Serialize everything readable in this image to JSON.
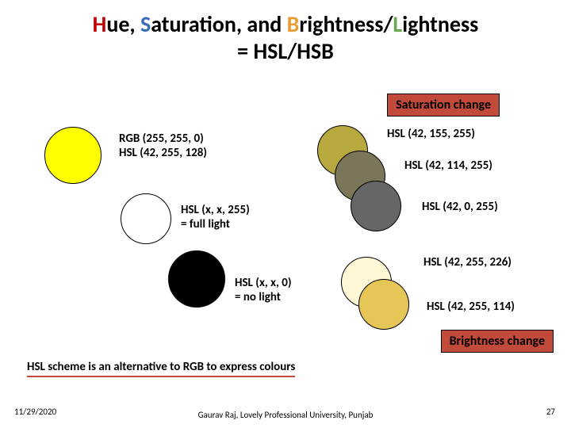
{
  "title": {
    "H": "H",
    "ue": "ue, ",
    "S": "S",
    "aturation": "aturation, and ",
    "B": "B",
    "rightness": "rightness/",
    "L": "L",
    "ightness": "ightness",
    "line2": "= HSL/HSB",
    "H_color": "#c00000",
    "S_color": "#3b6db5",
    "B_color": "#e69c2e",
    "L_color": "#6aa84f"
  },
  "banners": {
    "saturation": "Saturation change",
    "brightness": "Brightness change",
    "bg": "#c24a3a"
  },
  "circles": {
    "yellow": {
      "fill": "#ffff00",
      "size": 72
    },
    "white": {
      "fill": "#ffffff",
      "size": 64
    },
    "black": {
      "fill": "#000000",
      "size": 72
    },
    "sat1": {
      "fill": "#b8a93e",
      "size": 64
    },
    "sat2": {
      "fill": "#7b7559",
      "size": 64
    },
    "sat3": {
      "fill": "#666666",
      "size": 64
    },
    "bri1": {
      "fill": "#fff7d6",
      "size": 64
    },
    "bri2": {
      "fill": "#e6c657",
      "size": 64
    }
  },
  "labels": {
    "rgb_yellow_l1": "RGB  (255, 255, 0)",
    "rgb_yellow_l2": "HSL (42, 255, 128)",
    "white_l1": "HSL (x, x, 255)",
    "white_l2": "= full light",
    "black_l1": "HSL (x, x, 0)",
    "black_l2": "= no light",
    "sat1": "HSL (42, 155, 255)",
    "sat2": "HSL (42, 114, 255)",
    "sat3": "HSL (42, 0, 255)",
    "bri1": "HSL (42, 255, 226)",
    "bri2": "HSL (42, 255, 114)"
  },
  "subline": "HSL scheme is an alternative to RGB to express colours",
  "footer": {
    "date": "11/29/2020",
    "center": "Gaurav Raj, Lovely Professional University, Punjab",
    "page": "27"
  }
}
